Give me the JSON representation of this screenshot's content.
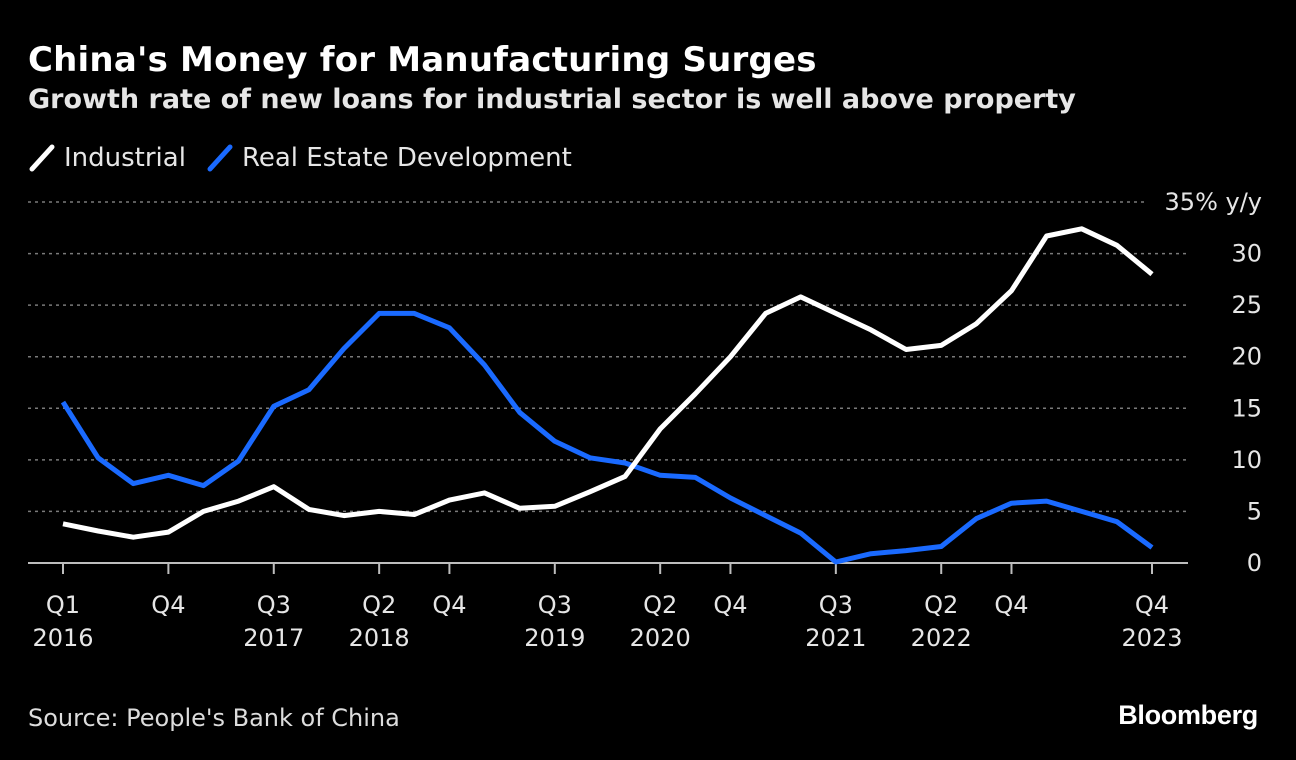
{
  "header": {
    "title": "China's Money for Manufacturing Surges",
    "subtitle": "Growth rate of new loans for industrial sector is well above property"
  },
  "footer": {
    "source": "Source: People's Bank of China",
    "brand": "Bloomberg"
  },
  "colors": {
    "background": "#000000",
    "industrial": "#ffffff",
    "real_estate": "#1a6aff",
    "grid": "#7a7a7a"
  },
  "chart_data": {
    "type": "line",
    "title": "China's Money for Manufacturing Surges",
    "subtitle": "Growth rate of new loans for industrial sector is well above property",
    "x": [
      "Q1 2016",
      "Q2 2016",
      "Q3 2016",
      "Q4 2016",
      "Q1 2017",
      "Q2 2017",
      "Q3 2017",
      "Q4 2017",
      "Q1 2018",
      "Q2 2018",
      "Q3 2018",
      "Q4 2018",
      "Q1 2019",
      "Q2 2019",
      "Q3 2019",
      "Q4 2019",
      "Q1 2020",
      "Q2 2020",
      "Q3 2020",
      "Q4 2020",
      "Q1 2021",
      "Q2 2021",
      "Q3 2021",
      "Q4 2021",
      "Q1 2022",
      "Q2 2022",
      "Q3 2022",
      "Q4 2022",
      "Q1 2023",
      "Q2 2023",
      "Q3 2023",
      "Q4 2023"
    ],
    "series": [
      {
        "name": "Industrial",
        "values": [
          3.8,
          3.1,
          2.5,
          3.0,
          5.0,
          6.0,
          7.4,
          5.2,
          4.6,
          5.0,
          4.7,
          6.1,
          6.8,
          5.3,
          5.5,
          6.9,
          8.4,
          13.0,
          16.4,
          20.0,
          24.2,
          25.8,
          24.2,
          22.6,
          20.7,
          21.1,
          23.2,
          26.4,
          31.7,
          32.4,
          30.8,
          28.0
        ]
      },
      {
        "name": "Real Estate Development",
        "values": [
          15.6,
          10.2,
          7.7,
          8.5,
          7.5,
          9.9,
          15.2,
          16.8,
          20.8,
          24.2,
          24.2,
          22.8,
          19.2,
          14.6,
          11.8,
          10.2,
          9.7,
          8.5,
          8.3,
          6.3,
          4.6,
          2.9,
          0.1,
          0.9,
          1.2,
          1.6,
          4.3,
          5.8,
          6.0,
          5.0,
          4.0,
          1.5
        ]
      }
    ],
    "y_unit_label": "35% y/y",
    "ylim": [
      0,
      35
    ],
    "y_ticks": [
      {
        "value": 0,
        "label": "0"
      },
      {
        "value": 5,
        "label": "5"
      },
      {
        "value": 10,
        "label": "10"
      },
      {
        "value": 15,
        "label": "15"
      },
      {
        "value": 20,
        "label": "20"
      },
      {
        "value": 25,
        "label": "25"
      },
      {
        "value": 30,
        "label": "30"
      },
      {
        "value": 35,
        "label": "35% y/y"
      }
    ],
    "x_ticks": [
      {
        "index": 0,
        "quarter": "Q1",
        "year": "2016"
      },
      {
        "index": 3,
        "quarter": "Q4",
        "year": ""
      },
      {
        "index": 6,
        "quarter": "Q3",
        "year": "2017"
      },
      {
        "index": 9,
        "quarter": "Q2",
        "year": "2018"
      },
      {
        "index": 11,
        "quarter": "Q4",
        "year": ""
      },
      {
        "index": 14,
        "quarter": "Q3",
        "year": "2019"
      },
      {
        "index": 17,
        "quarter": "Q2",
        "year": "2020"
      },
      {
        "index": 19,
        "quarter": "Q4",
        "year": ""
      },
      {
        "index": 22,
        "quarter": "Q3",
        "year": "2021"
      },
      {
        "index": 25,
        "quarter": "Q2",
        "year": "2022"
      },
      {
        "index": 27,
        "quarter": "Q4",
        "year": ""
      },
      {
        "index": 31,
        "quarter": "Q4",
        "year": "2023"
      }
    ],
    "grid": true,
    "legend_position": "top-left"
  }
}
